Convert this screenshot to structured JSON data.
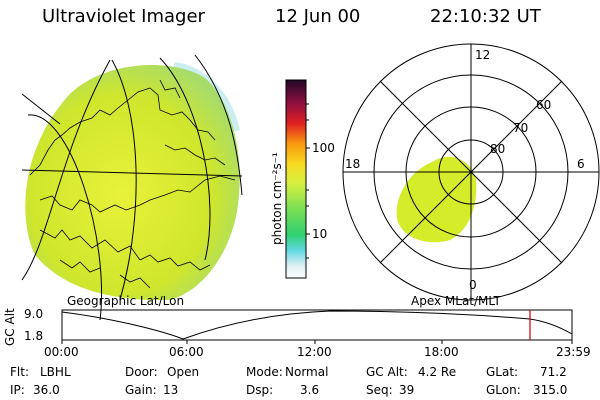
{
  "header": {
    "title": "Ultraviolet Imager",
    "date": "12 Jun 00",
    "time": "22:10:32 UT"
  },
  "geo_panel": {
    "caption": "Geographic Lat/Lon"
  },
  "polar_panel": {
    "caption": "Apex MLat/MLT",
    "mlt_labels": {
      "top": "12",
      "left": "18",
      "right": "6",
      "bottom": "0"
    },
    "lat_labels": [
      "60",
      "70",
      "80"
    ]
  },
  "colorbar": {
    "unit_label": "photon cm⁻²s⁻¹",
    "tick_labels": [
      "100",
      "10"
    ],
    "scale": "log"
  },
  "timeline": {
    "ylabel": "GC Alt",
    "y_ticks": [
      "9.0",
      "1.8"
    ],
    "x_ticks": [
      "00:00",
      "06:00",
      "12:00",
      "18:00",
      "23:59"
    ],
    "marker_color": "#cc0000"
  },
  "info": {
    "rows": [
      [
        {
          "label": "Flt:",
          "value": "LBHL"
        },
        {
          "label": "Door:",
          "value": "Open"
        },
        {
          "label": "Mode:",
          "value": "Normal"
        },
        {
          "label": "GC Alt:",
          "value": "4.2 Re"
        },
        {
          "label": "GLat:",
          "value": "71.2"
        }
      ],
      [
        {
          "label": "IP:",
          "value": "36.0"
        },
        {
          "label": "Gain:",
          "value": "13"
        },
        {
          "label": "Dsp:",
          "value": "3.6"
        },
        {
          "label": "Seq:",
          "value": "39"
        },
        {
          "label": "GLon:",
          "value": "315.0"
        }
      ]
    ]
  },
  "colors": {
    "aurora_fill": "#d4ec2a",
    "aurora_edge": "#b8e0a0",
    "line": "#000000"
  }
}
